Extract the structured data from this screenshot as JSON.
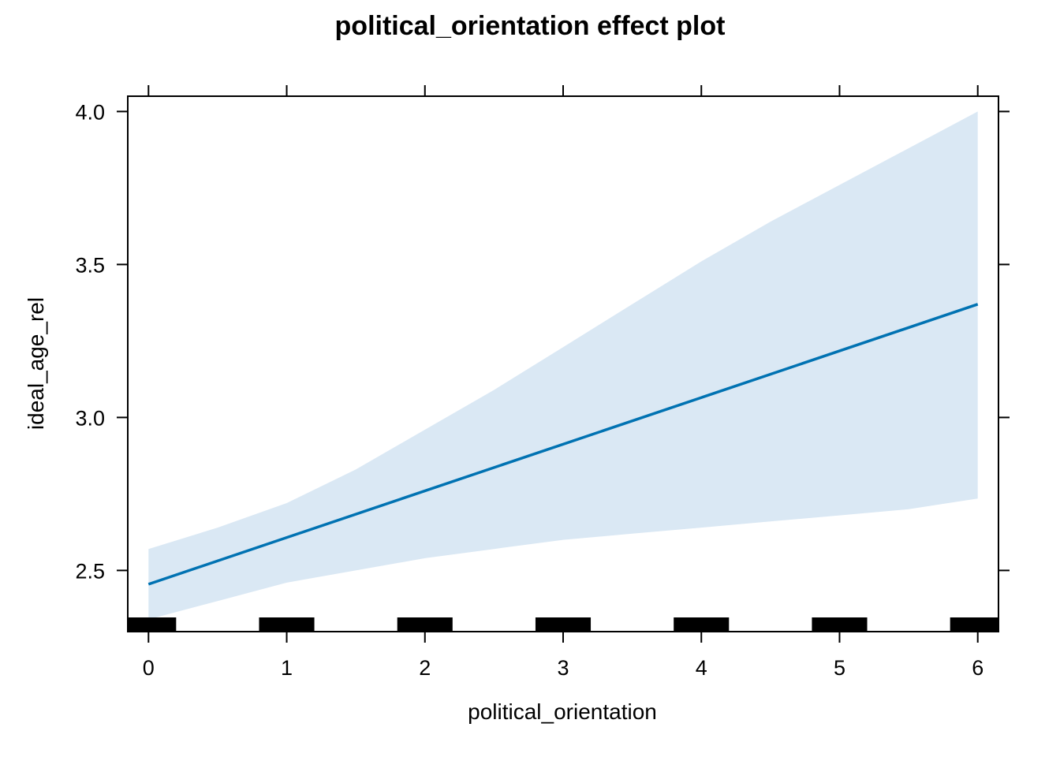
{
  "chart_data": {
    "type": "line",
    "title": "political_orientation effect plot",
    "xlabel": "political_orientation",
    "ylabel": "ideal_age_rel",
    "xlim": [
      -0.15,
      6.15
    ],
    "ylim": [
      2.3,
      4.05
    ],
    "x_ticks": [
      0,
      1,
      2,
      3,
      4,
      5,
      6
    ],
    "x_tick_labels": [
      "0",
      "1",
      "2",
      "3",
      "4",
      "5",
      "6"
    ],
    "y_ticks": [
      2.5,
      3.0,
      3.5,
      4.0
    ],
    "y_tick_labels": [
      "2.5",
      "3.0",
      "3.5",
      "4.0"
    ],
    "grid": false,
    "legend": "none",
    "series": [
      {
        "kind": "fit",
        "x": [
          0,
          6
        ],
        "values": [
          2.455,
          3.37
        ],
        "color": "#0072b2"
      },
      {
        "kind": "confidence-band",
        "x": [
          0,
          0.5,
          1,
          1.5,
          2,
          2.5,
          3,
          3.5,
          4,
          4.5,
          5,
          5.5,
          6
        ],
        "upper": [
          2.57,
          2.64,
          2.72,
          2.83,
          2.96,
          3.09,
          3.23,
          3.37,
          3.51,
          3.64,
          3.76,
          3.88,
          4.0
        ],
        "lower": [
          2.34,
          2.4,
          2.46,
          2.5,
          2.54,
          2.57,
          2.6,
          2.62,
          2.64,
          2.66,
          2.68,
          2.7,
          2.735
        ],
        "color": "#dae8f4"
      }
    ],
    "rug": {
      "x": [
        0,
        1,
        2,
        3,
        4,
        5,
        6
      ],
      "color": "#000000"
    }
  }
}
